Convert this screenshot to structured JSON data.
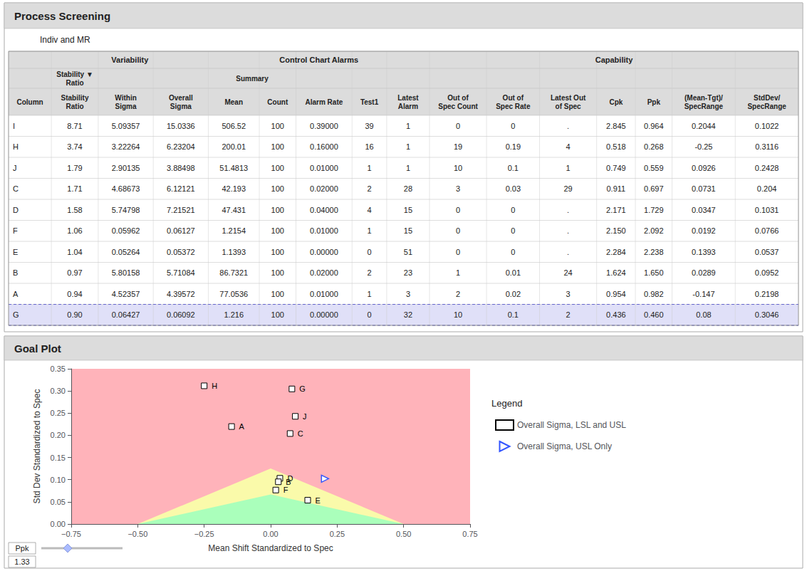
{
  "chart_data": [
    {
      "type": "table",
      "title": "Process Screening",
      "subtitle": "Indiv and MR",
      "header_color": "#DCDCDC",
      "selected_color": "#E0E0F8",
      "selected_border_color": "#6666CC",
      "selected_rows": [
        "G"
      ],
      "column_groups": [
        {
          "label": "Variability",
          "start": 1,
          "end": 3
        },
        {
          "label": "Control Chart Alarms",
          "start": 4,
          "end": 8
        },
        {
          "label": "Capability",
          "start": 9,
          "end": 15
        }
      ],
      "column_subgroups": [
        {
          "label": "Stability ▼\nRatio",
          "start": 1,
          "end": 1
        },
        {
          "label": "Summary",
          "start": 4,
          "end": 5
        }
      ],
      "columns": [
        "Column",
        "Stability\nRatio",
        "Within\nSigma",
        "Overall\nSigma",
        "Mean",
        "Count",
        "Alarm Rate",
        "Test1",
        "Latest\nAlarm",
        "Out of\nSpec Count",
        "Out of\nSpec Rate",
        "Latest Out\nof Spec",
        "Cpk",
        "Ppk",
        "(Mean-Tgt)/\nSpecRange",
        "StdDev/\nSpecRange"
      ],
      "rows": [
        [
          "I",
          "8.71",
          "5.09357",
          "15.0336",
          "506.52",
          "100",
          "0.39000",
          "39",
          "1",
          "0",
          "0",
          ".",
          "2.845",
          "0.964",
          "0.2044",
          "0.1022"
        ],
        [
          "H",
          "3.74",
          "3.22264",
          "6.23204",
          "200.01",
          "100",
          "0.16000",
          "16",
          "1",
          "19",
          "0.19",
          "4",
          "0.518",
          "0.268",
          "-0.25",
          "0.3116"
        ],
        [
          "J",
          "1.79",
          "2.90135",
          "3.88498",
          "51.4813",
          "100",
          "0.01000",
          "1",
          "1",
          "10",
          "0.1",
          "1",
          "0.749",
          "0.559",
          "0.0926",
          "0.2428"
        ],
        [
          "C",
          "1.71",
          "4.68673",
          "6.12121",
          "42.193",
          "100",
          "0.02000",
          "2",
          "28",
          "3",
          "0.03",
          "29",
          "0.911",
          "0.697",
          "0.0731",
          "0.204"
        ],
        [
          "D",
          "1.58",
          "5.74798",
          "7.21521",
          "47.431",
          "100",
          "0.04000",
          "4",
          "15",
          "0",
          "0",
          ".",
          "2.171",
          "1.729",
          "0.0347",
          "0.1031"
        ],
        [
          "F",
          "1.06",
          "0.05962",
          "0.06127",
          "1.2154",
          "100",
          "0.01000",
          "1",
          "15",
          "0",
          "0",
          ".",
          "2.150",
          "2.092",
          "0.0192",
          "0.0766"
        ],
        [
          "E",
          "1.04",
          "0.05264",
          "0.05372",
          "1.1393",
          "100",
          "0.00000",
          "0",
          "51",
          "0",
          "0",
          ".",
          "2.284",
          "2.238",
          "0.1393",
          "0.0537"
        ],
        [
          "B",
          "0.97",
          "5.80158",
          "5.71084",
          "86.7321",
          "100",
          "0.02000",
          "2",
          "23",
          "1",
          "0.01",
          "24",
          "1.624",
          "1.650",
          "0.0289",
          "0.0952"
        ],
        [
          "A",
          "0.94",
          "4.52357",
          "4.39572",
          "77.0536",
          "100",
          "0.01000",
          "1",
          "3",
          "2",
          "0.02",
          "3",
          "0.954",
          "0.982",
          "-0.147",
          "0.2198"
        ],
        [
          "G",
          "0.90",
          "0.06427",
          "0.06092",
          "1.216",
          "100",
          "0.00000",
          "0",
          "32",
          "10",
          "0.1",
          "2",
          "0.436",
          "0.460",
          "0.08",
          "0.3046"
        ]
      ]
    },
    {
      "type": "scatter",
      "title": "Goal Plot",
      "xlabel": "Mean Shift Standardized to Spec",
      "ylabel": "Std Dev Standardized to Spec",
      "xlim": [
        -0.75,
        0.75
      ],
      "xticks": [
        {
          "value": -0.75,
          "label": "−0.75"
        },
        {
          "value": -0.5,
          "label": "−0.50"
        },
        {
          "value": -0.25,
          "label": "−0.25"
        },
        {
          "value": 0,
          "label": "0.00"
        },
        0.25,
        {
          "value": 0.5,
          "label": "0.50"
        },
        0.75
      ],
      "ylim": [
        0,
        0.35
      ],
      "yticks": [
        {
          "value": 0,
          "label": "0.00"
        },
        0.05,
        {
          "value": 0.1,
          "label": "0.10"
        },
        0.15,
        {
          "value": 0.2,
          "label": "0.20"
        },
        0.25,
        {
          "value": 0.3,
          "label": "0.30"
        },
        0.35
      ],
      "grid": false,
      "legend": "right",
      "legend_title": "Legend",
      "background_color": "#FFB3BA",
      "spec_limits": [
        -0.5,
        0.5
      ],
      "zones": [
        {
          "ppk": 1.33,
          "color": "#FAFAAA"
        },
        {
          "ppk": 2.5,
          "color": "#AAFFBB"
        }
      ],
      "slider": {
        "label": "Ppk",
        "value": 1.33
      },
      "series": [
        {
          "name": "Overall Sigma, LSL and USL",
          "marker": "square",
          "color": "#000000",
          "labels": [
            "H",
            "G",
            "J",
            "A",
            "C",
            "D",
            "B",
            "F",
            "E"
          ],
          "x": [
            -0.25,
            0.08,
            0.0926,
            -0.147,
            0.0731,
            0.0347,
            0.0289,
            0.0192,
            0.1393
          ],
          "values": [
            0.3116,
            0.3046,
            0.2428,
            0.2198,
            0.204,
            0.1031,
            0.0952,
            0.0766,
            0.0537
          ]
        },
        {
          "name": "Overall Sigma, USL Only",
          "marker": "triangle-right",
          "color": "#3355FF",
          "x": [
            0.2044
          ],
          "values": [
            0.1022
          ]
        }
      ]
    }
  ]
}
